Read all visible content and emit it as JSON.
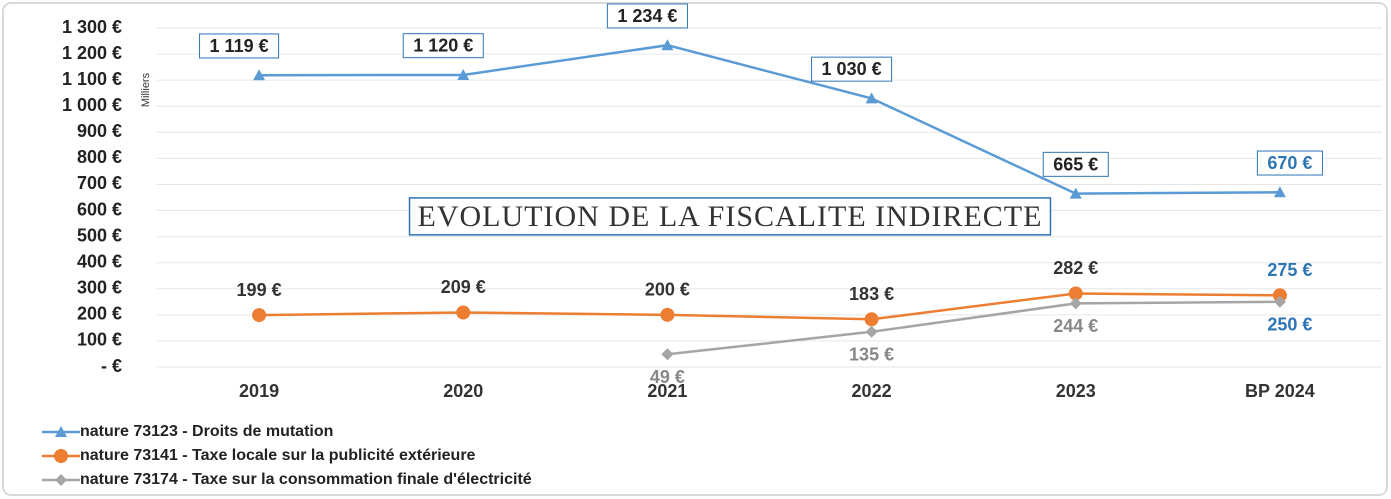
{
  "chart_data": {
    "type": "line",
    "title": "EVOLUTION DE LA FISCALITE INDIRECTE",
    "y_axis_label": "Milliers",
    "categories": [
      "2019",
      "2020",
      "2021",
      "2022",
      "2023",
      "BP 2024"
    ],
    "ylim": [
      0,
      1300
    ],
    "yticks": [
      {
        "value": 0,
        "label": "-   €"
      },
      {
        "value": 100,
        "label": "100 €"
      },
      {
        "value": 200,
        "label": "200 €"
      },
      {
        "value": 300,
        "label": "300 €"
      },
      {
        "value": 400,
        "label": "400 €"
      },
      {
        "value": 500,
        "label": "500 €"
      },
      {
        "value": 600,
        "label": "600 €"
      },
      {
        "value": 700,
        "label": "700 €"
      },
      {
        "value": 800,
        "label": "800 €"
      },
      {
        "value": 900,
        "label": "900 €"
      },
      {
        "value": 1000,
        "label": "1 000 €"
      },
      {
        "value": 1100,
        "label": "1 100 €"
      },
      {
        "value": 1200,
        "label": "1 200 €"
      },
      {
        "value": 1300,
        "label": "1 300 €"
      }
    ],
    "grid": true,
    "series": [
      {
        "name": "nature 73123 - Droits de mutation",
        "color": "#5b9bd5",
        "marker": "triangle",
        "values": [
          1119,
          1120,
          1234,
          1030,
          665,
          670
        ],
        "value_labels": [
          "1 119 €",
          "1 120 €",
          "1 234 €",
          "1 030 €",
          "665 €",
          "670 €"
        ]
      },
      {
        "name": "nature 73141 - Taxe locale sur la publicité extérieure",
        "color": "#ed7d31",
        "marker": "circle",
        "values": [
          199,
          209,
          200,
          183,
          282,
          275
        ],
        "value_labels": [
          "199 €",
          "209 €",
          "200 €",
          "183 €",
          "282 €",
          "275 €"
        ]
      },
      {
        "name": "nature 73174 - Taxe sur la consommation finale d'électricité",
        "color": "#a5a5a5",
        "marker": "diamond",
        "values": [
          null,
          null,
          49,
          135,
          244,
          250
        ],
        "value_labels": [
          null,
          null,
          "49 €",
          "135 €",
          "244 €",
          "250 €"
        ]
      }
    ]
  }
}
